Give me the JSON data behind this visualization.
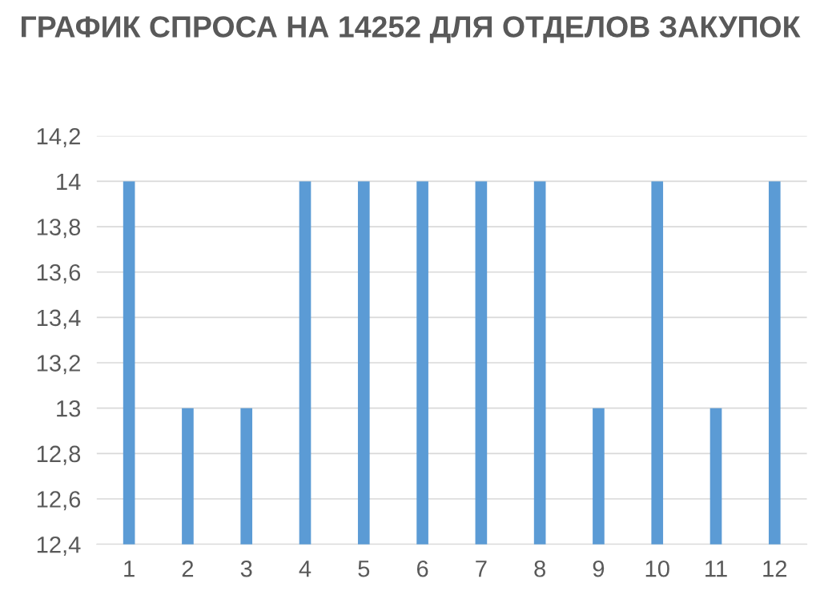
{
  "chart_data": {
    "type": "bar",
    "title": "ГРАФИК СПРОСА НА 14252 ДЛЯ ОТДЕЛОВ ЗАКУПОК",
    "categories": [
      "1",
      "2",
      "3",
      "4",
      "5",
      "6",
      "7",
      "8",
      "9",
      "10",
      "11",
      "12"
    ],
    "values": [
      14,
      13,
      13,
      14,
      14,
      14,
      14,
      14,
      13,
      14,
      13,
      14
    ],
    "color": "#5b9bd5",
    "ylim": [
      12.4,
      14.2
    ],
    "yticks": [
      {
        "value": 12.4,
        "label": "12,4"
      },
      {
        "value": 12.6,
        "label": "12,6"
      },
      {
        "value": 12.8,
        "label": "12,8"
      },
      13,
      {
        "value": 13.2,
        "label": "13,2"
      },
      {
        "value": 13.4,
        "label": "13,4"
      },
      {
        "value": 13.6,
        "label": "13,6"
      },
      {
        "value": 13.8,
        "label": "13,8"
      },
      14,
      {
        "value": 14.2,
        "label": "14,2"
      }
    ],
    "grid": "y",
    "legend": false
  }
}
